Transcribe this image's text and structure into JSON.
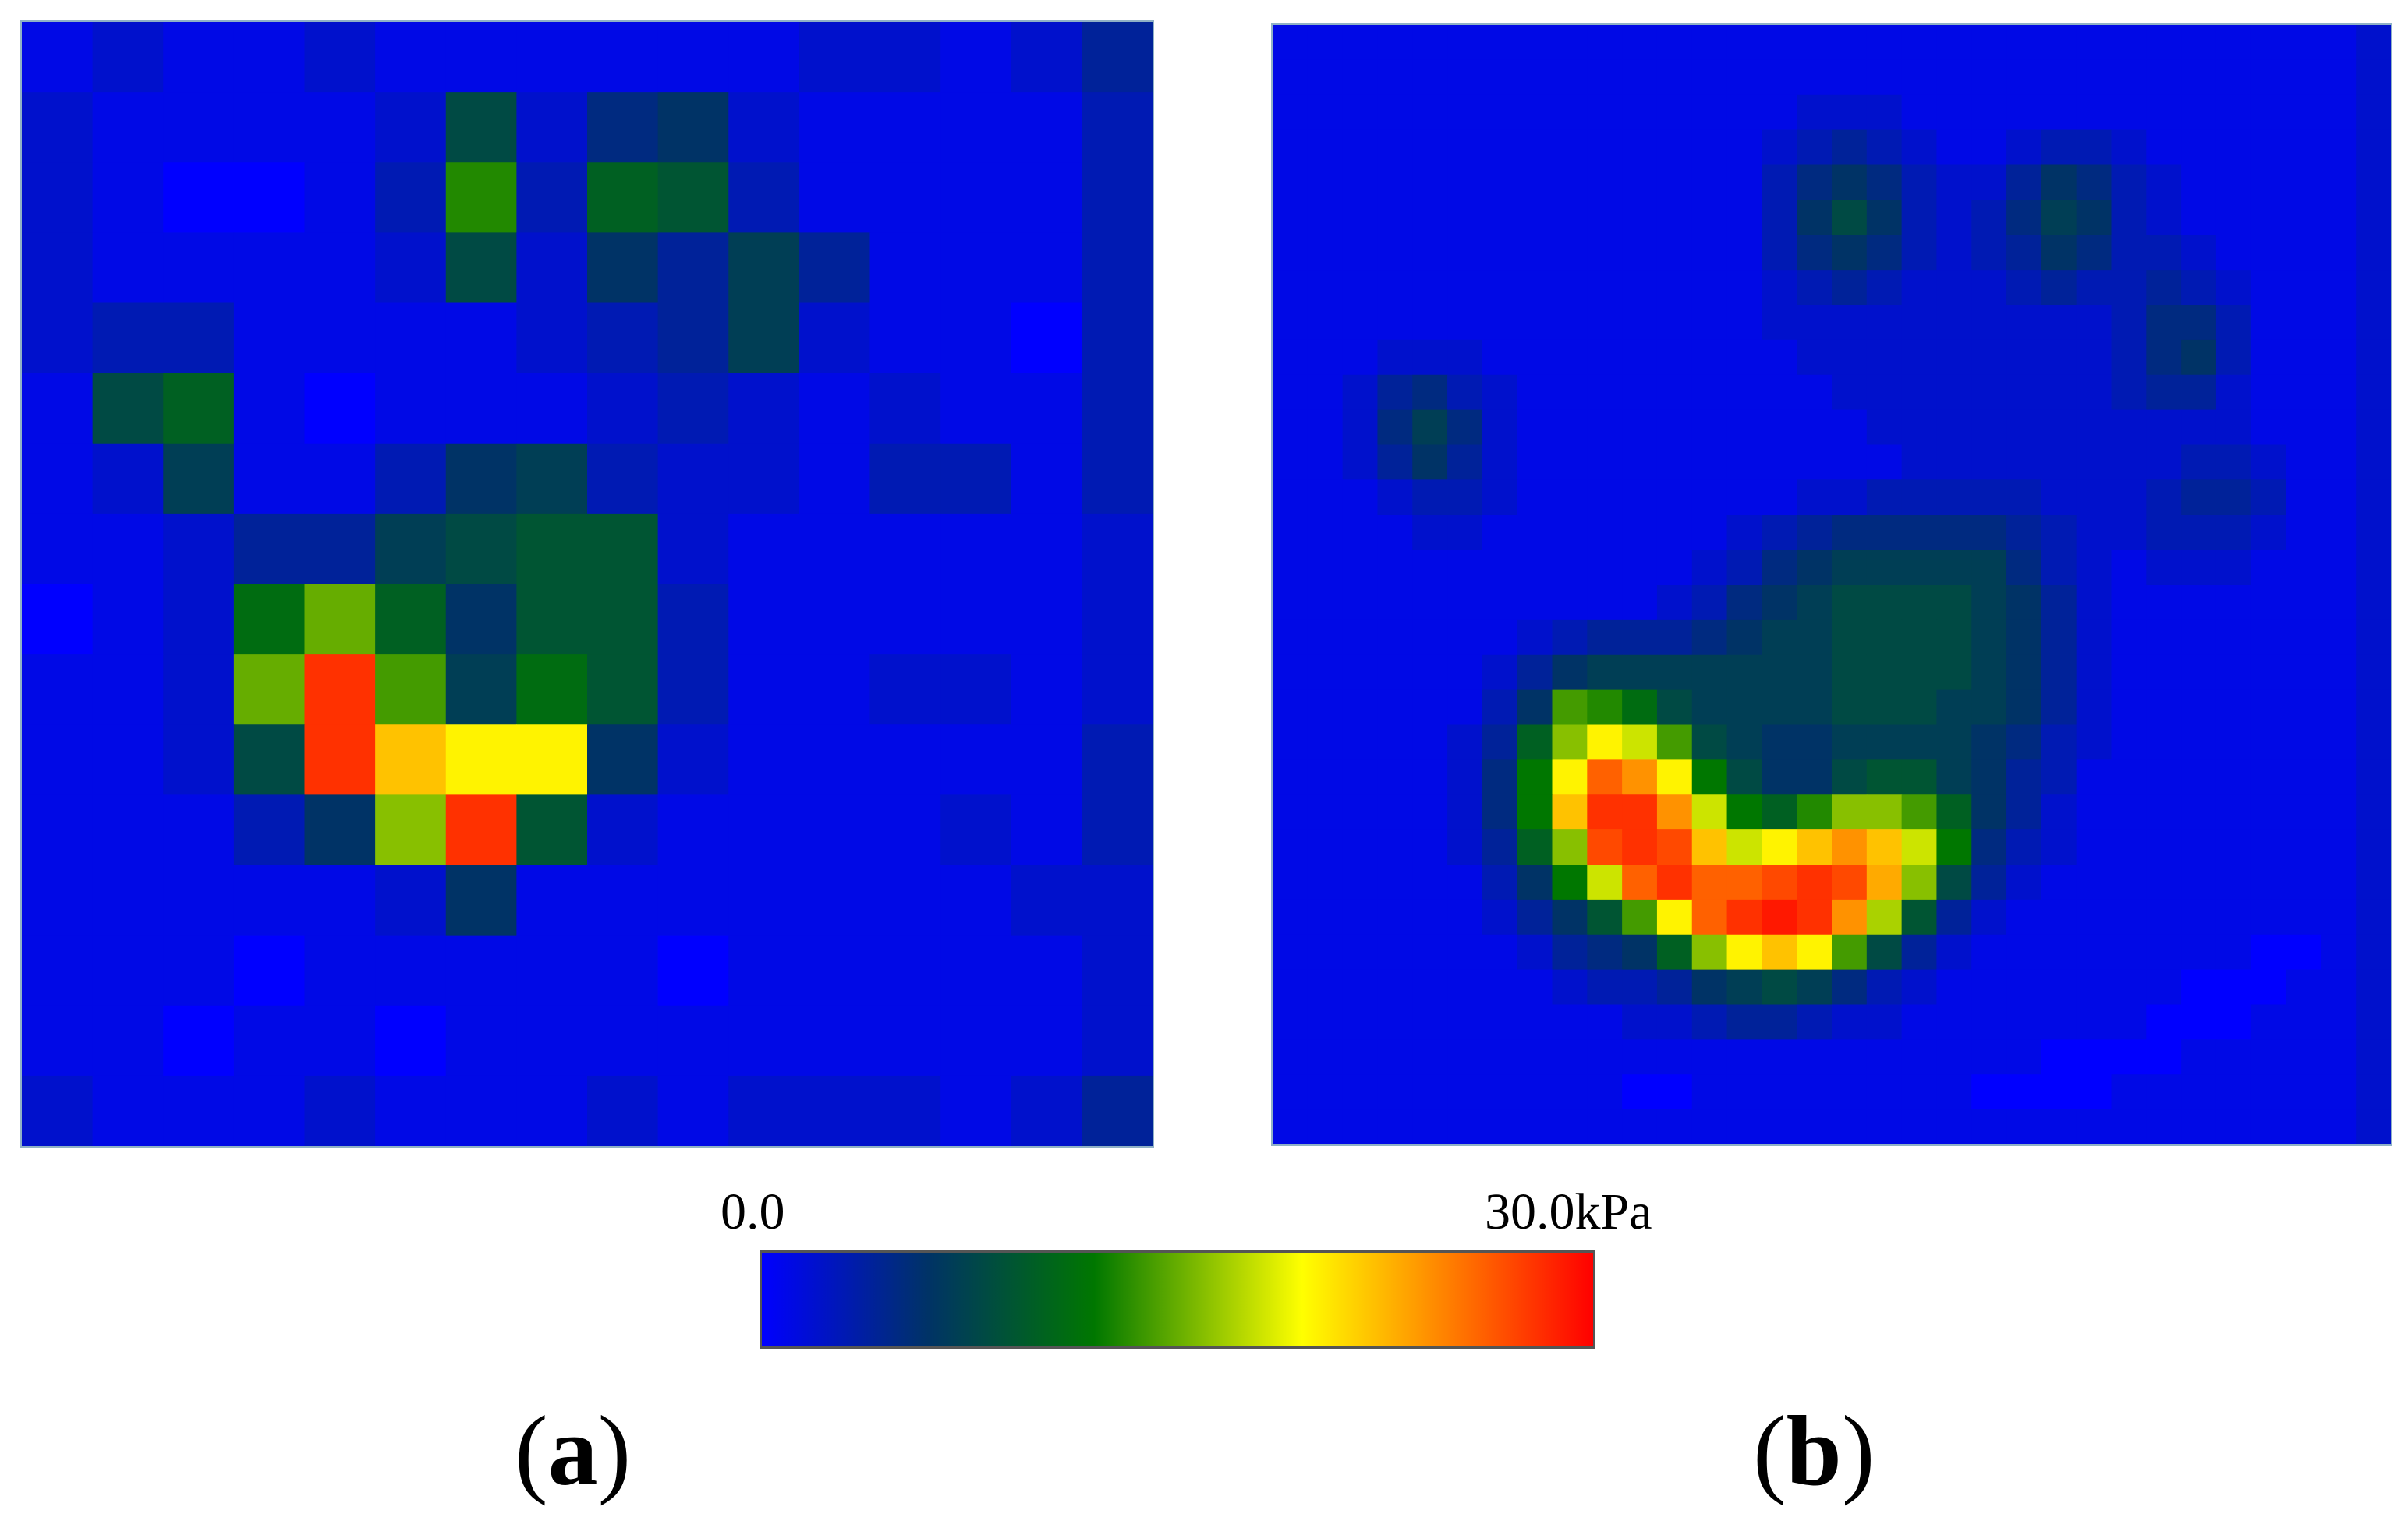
{
  "chart_data": [
    {
      "type": "heatmap",
      "panel_label": "a",
      "rows": 16,
      "cols": 16,
      "cells": [
        [
          1,
          2,
          1,
          1,
          2,
          1,
          1,
          1,
          1,
          1,
          1,
          2,
          2,
          1,
          2,
          4
        ],
        [
          2,
          1,
          1,
          1,
          1,
          2,
          8,
          2,
          5,
          6,
          2,
          1,
          1,
          1,
          1,
          3
        ],
        [
          2,
          1,
          0,
          0,
          1,
          3,
          13,
          3,
          10,
          9,
          3,
          1,
          1,
          1,
          1,
          3
        ],
        [
          2,
          1,
          1,
          1,
          1,
          2,
          8,
          2,
          6,
          4,
          7,
          4,
          1,
          1,
          1,
          3
        ],
        [
          2,
          3,
          3,
          1,
          1,
          1,
          1,
          2,
          3,
          4,
          7,
          2,
          1,
          1,
          0,
          3
        ],
        [
          1,
          8,
          10,
          1,
          0,
          1,
          1,
          1,
          2,
          3,
          2,
          1,
          2,
          1,
          1,
          3
        ],
        [
          1,
          2,
          7,
          1,
          1,
          3,
          6,
          7,
          3,
          2,
          2,
          1,
          3,
          3,
          1,
          3
        ],
        [
          1,
          1,
          2,
          4,
          4,
          7,
          8,
          9,
          9,
          2,
          1,
          1,
          1,
          1,
          1,
          2
        ],
        [
          0,
          1,
          2,
          11,
          15,
          10,
          6,
          9,
          9,
          3,
          1,
          1,
          1,
          1,
          1,
          2
        ],
        [
          1,
          1,
          2,
          15,
          28,
          14,
          7,
          11,
          9,
          3,
          1,
          1,
          2,
          2,
          1,
          2
        ],
        [
          1,
          1,
          2,
          8,
          28,
          22,
          20,
          20,
          6,
          2,
          1,
          1,
          1,
          1,
          1,
          3
        ],
        [
          1,
          1,
          1,
          3,
          6,
          16,
          28,
          9,
          2,
          1,
          1,
          1,
          1,
          2,
          1,
          3
        ],
        [
          1,
          1,
          1,
          1,
          1,
          2,
          6,
          1,
          1,
          1,
          1,
          1,
          1,
          1,
          2,
          2
        ],
        [
          1,
          1,
          1,
          0,
          1,
          1,
          1,
          1,
          1,
          0,
          1,
          1,
          1,
          1,
          1,
          2
        ],
        [
          1,
          1,
          0,
          1,
          1,
          0,
          1,
          1,
          1,
          1,
          1,
          1,
          1,
          1,
          1,
          2
        ],
        [
          2,
          1,
          1,
          1,
          2,
          1,
          1,
          1,
          2,
          1,
          2,
          2,
          2,
          1,
          2,
          4
        ]
      ]
    },
    {
      "type": "heatmap",
      "panel_label": "b",
      "rows": 32,
      "cols": 32,
      "cells": [
        [
          1,
          1,
          1,
          1,
          1,
          1,
          1,
          1,
          1,
          1,
          1,
          1,
          1,
          1,
          1,
          1,
          1,
          1,
          1,
          1,
          1,
          1,
          1,
          1,
          1,
          1,
          1,
          1,
          1,
          1,
          1,
          2
        ],
        [
          1,
          1,
          1,
          1,
          1,
          1,
          1,
          1,
          1,
          1,
          1,
          1,
          1,
          1,
          1,
          1,
          1,
          1,
          1,
          1,
          1,
          1,
          1,
          1,
          1,
          1,
          1,
          1,
          1,
          1,
          1,
          2
        ],
        [
          1,
          1,
          1,
          1,
          1,
          1,
          1,
          1,
          1,
          1,
          1,
          1,
          1,
          1,
          1,
          2,
          2,
          2,
          1,
          1,
          1,
          1,
          1,
          1,
          1,
          1,
          1,
          1,
          1,
          1,
          1,
          2
        ],
        [
          1,
          1,
          1,
          1,
          1,
          1,
          1,
          1,
          1,
          1,
          1,
          1,
          1,
          1,
          2,
          3,
          4,
          3,
          2,
          1,
          1,
          2,
          3,
          3,
          2,
          1,
          1,
          1,
          1,
          1,
          1,
          2
        ],
        [
          1,
          1,
          1,
          1,
          1,
          1,
          1,
          1,
          1,
          1,
          1,
          1,
          1,
          1,
          3,
          5,
          6,
          5,
          3,
          2,
          2,
          4,
          6,
          5,
          3,
          2,
          1,
          1,
          1,
          1,
          1,
          2
        ],
        [
          1,
          1,
          1,
          1,
          1,
          1,
          1,
          1,
          1,
          1,
          1,
          1,
          1,
          1,
          3,
          6,
          8,
          6,
          3,
          2,
          3,
          5,
          7,
          6,
          3,
          2,
          1,
          1,
          1,
          1,
          1,
          2
        ],
        [
          1,
          1,
          1,
          1,
          1,
          1,
          1,
          1,
          1,
          1,
          1,
          1,
          1,
          1,
          3,
          5,
          6,
          5,
          3,
          2,
          3,
          4,
          6,
          5,
          3,
          3,
          2,
          1,
          1,
          1,
          1,
          2
        ],
        [
          1,
          1,
          1,
          1,
          1,
          1,
          1,
          1,
          1,
          1,
          1,
          1,
          1,
          1,
          2,
          3,
          4,
          3,
          2,
          2,
          2,
          3,
          4,
          3,
          3,
          4,
          3,
          2,
          1,
          1,
          1,
          2
        ],
        [
          1,
          1,
          1,
          1,
          1,
          1,
          1,
          1,
          1,
          1,
          1,
          1,
          1,
          1,
          2,
          2,
          2,
          2,
          2,
          2,
          2,
          2,
          2,
          2,
          3,
          5,
          5,
          3,
          1,
          1,
          1,
          2
        ],
        [
          1,
          1,
          1,
          2,
          2,
          2,
          1,
          1,
          1,
          1,
          1,
          1,
          1,
          1,
          1,
          2,
          2,
          2,
          2,
          2,
          2,
          2,
          2,
          2,
          3,
          5,
          6,
          3,
          1,
          1,
          1,
          2
        ],
        [
          1,
          1,
          2,
          4,
          5,
          3,
          2,
          1,
          1,
          1,
          1,
          1,
          1,
          1,
          1,
          1,
          2,
          2,
          2,
          2,
          2,
          2,
          2,
          2,
          3,
          4,
          4,
          2,
          1,
          1,
          1,
          2
        ],
        [
          1,
          1,
          2,
          5,
          7,
          5,
          2,
          1,
          1,
          1,
          1,
          1,
          1,
          1,
          1,
          1,
          1,
          2,
          2,
          2,
          2,
          2,
          2,
          2,
          2,
          2,
          2,
          2,
          1,
          1,
          1,
          2
        ],
        [
          1,
          1,
          2,
          4,
          6,
          4,
          2,
          1,
          1,
          1,
          1,
          1,
          1,
          1,
          1,
          1,
          1,
          1,
          2,
          2,
          2,
          2,
          2,
          2,
          2,
          2,
          3,
          3,
          2,
          1,
          1,
          2
        ],
        [
          1,
          1,
          1,
          2,
          3,
          3,
          2,
          1,
          1,
          1,
          1,
          1,
          1,
          1,
          1,
          2,
          2,
          3,
          3,
          3,
          3,
          3,
          2,
          2,
          2,
          3,
          4,
          4,
          3,
          1,
          1,
          2
        ],
        [
          1,
          1,
          1,
          1,
          2,
          2,
          1,
          1,
          1,
          1,
          1,
          1,
          1,
          2,
          3,
          4,
          5,
          5,
          5,
          5,
          5,
          4,
          3,
          2,
          2,
          3,
          3,
          3,
          2,
          1,
          1,
          2
        ],
        [
          1,
          1,
          1,
          1,
          1,
          1,
          1,
          1,
          1,
          1,
          1,
          1,
          2,
          3,
          5,
          6,
          7,
          7,
          7,
          7,
          7,
          5,
          3,
          2,
          1,
          2,
          2,
          2,
          1,
          1,
          1,
          2
        ],
        [
          1,
          1,
          1,
          1,
          1,
          1,
          1,
          1,
          1,
          1,
          1,
          2,
          3,
          5,
          6,
          7,
          8,
          8,
          8,
          8,
          7,
          6,
          4,
          2,
          1,
          1,
          1,
          1,
          1,
          1,
          1,
          2
        ],
        [
          1,
          1,
          1,
          1,
          1,
          1,
          1,
          2,
          3,
          4,
          4,
          4,
          5,
          6,
          7,
          7,
          8,
          8,
          8,
          8,
          7,
          6,
          4,
          2,
          1,
          1,
          1,
          1,
          1,
          1,
          1,
          2
        ],
        [
          1,
          1,
          1,
          1,
          1,
          1,
          2,
          4,
          6,
          7,
          7,
          7,
          7,
          7,
          7,
          7,
          8,
          8,
          8,
          8,
          7,
          6,
          4,
          2,
          1,
          1,
          1,
          1,
          1,
          1,
          1,
          2
        ],
        [
          1,
          1,
          1,
          1,
          1,
          1,
          3,
          6,
          14,
          13,
          11,
          8,
          7,
          7,
          7,
          7,
          8,
          8,
          8,
          7,
          7,
          6,
          4,
          2,
          1,
          1,
          1,
          1,
          1,
          1,
          1,
          2
        ],
        [
          1,
          1,
          1,
          1,
          1,
          2,
          4,
          10,
          16,
          20,
          18,
          14,
          8,
          7,
          6,
          6,
          7,
          7,
          7,
          7,
          6,
          5,
          3,
          2,
          1,
          1,
          1,
          1,
          1,
          1,
          1,
          2
        ],
        [
          1,
          1,
          1,
          1,
          1,
          2,
          5,
          12,
          20,
          26,
          24,
          20,
          12,
          8,
          6,
          6,
          8,
          9,
          9,
          7,
          6,
          4,
          3,
          1,
          1,
          1,
          1,
          1,
          1,
          1,
          1,
          2
        ],
        [
          1,
          1,
          1,
          1,
          1,
          2,
          5,
          12,
          22,
          28,
          28,
          24,
          18,
          12,
          10,
          13,
          16,
          16,
          14,
          10,
          6,
          4,
          2,
          1,
          1,
          1,
          1,
          1,
          1,
          1,
          1,
          2
        ],
        [
          1,
          1,
          1,
          1,
          1,
          2,
          4,
          10,
          16,
          27,
          28,
          27,
          22,
          18,
          20,
          22,
          24,
          22,
          18,
          12,
          5,
          3,
          2,
          1,
          1,
          1,
          1,
          1,
          1,
          1,
          1,
          2
        ],
        [
          1,
          1,
          1,
          1,
          1,
          1,
          3,
          6,
          12,
          18,
          26,
          28,
          26,
          26,
          27,
          28,
          27,
          23,
          16,
          8,
          4,
          2,
          1,
          1,
          1,
          1,
          1,
          1,
          1,
          1,
          1,
          2
        ],
        [
          1,
          1,
          1,
          1,
          1,
          1,
          2,
          4,
          6,
          9,
          14,
          20,
          26,
          28,
          29,
          28,
          24,
          17,
          9,
          4,
          2,
          1,
          1,
          1,
          1,
          1,
          1,
          1,
          1,
          1,
          1,
          2
        ],
        [
          1,
          1,
          1,
          1,
          1,
          1,
          1,
          2,
          4,
          5,
          6,
          10,
          16,
          20,
          22,
          20,
          14,
          8,
          4,
          2,
          1,
          1,
          1,
          1,
          1,
          1,
          1,
          1,
          0,
          0,
          1,
          2
        ],
        [
          1,
          1,
          1,
          1,
          1,
          1,
          1,
          1,
          2,
          3,
          3,
          4,
          6,
          7,
          8,
          7,
          5,
          3,
          2,
          1,
          1,
          1,
          1,
          1,
          1,
          1,
          0,
          0,
          0,
          1,
          1,
          2
        ],
        [
          1,
          1,
          1,
          1,
          1,
          1,
          1,
          1,
          1,
          1,
          2,
          2,
          3,
          4,
          4,
          3,
          2,
          2,
          1,
          1,
          1,
          1,
          1,
          1,
          1,
          0,
          0,
          0,
          1,
          1,
          1,
          2
        ],
        [
          1,
          1,
          1,
          1,
          1,
          1,
          1,
          1,
          1,
          1,
          1,
          1,
          1,
          1,
          1,
          1,
          1,
          1,
          1,
          1,
          1,
          1,
          0,
          0,
          0,
          0,
          1,
          1,
          1,
          1,
          1,
          2
        ],
        [
          1,
          1,
          1,
          1,
          1,
          1,
          1,
          1,
          1,
          1,
          0,
          0,
          1,
          1,
          1,
          1,
          1,
          1,
          1,
          1,
          0,
          0,
          0,
          0,
          1,
          1,
          1,
          1,
          1,
          1,
          1,
          2
        ],
        [
          1,
          1,
          1,
          1,
          1,
          1,
          1,
          1,
          1,
          1,
          1,
          1,
          1,
          1,
          1,
          1,
          1,
          1,
          1,
          1,
          1,
          1,
          1,
          1,
          1,
          1,
          1,
          1,
          1,
          1,
          1,
          2
        ]
      ]
    }
  ],
  "colorbar": {
    "min_label": "0.0",
    "max_label": "30.0kPa",
    "min": 0,
    "max": 30,
    "stops": [
      "#0000ff",
      "#003366",
      "#007700",
      "#ffff00",
      "#ff0000"
    ]
  },
  "panels": {
    "a": {
      "open": "(",
      "letter": "a",
      "close": ")"
    },
    "b": {
      "open": "(",
      "letter": "b",
      "close": ")"
    }
  }
}
